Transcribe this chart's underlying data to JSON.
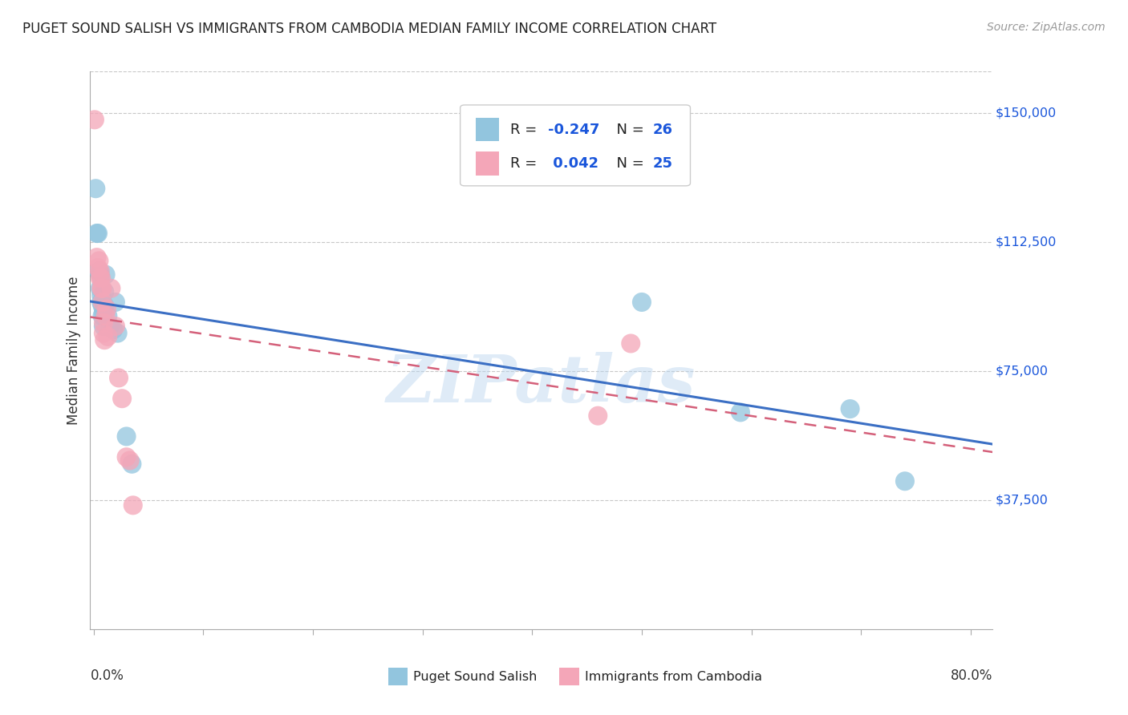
{
  "title": "PUGET SOUND SALISH VS IMMIGRANTS FROM CAMBODIA MEDIAN FAMILY INCOME CORRELATION CHART",
  "source": "Source: ZipAtlas.com",
  "ylabel": "Median Family Income",
  "ytick_labels": [
    "$150,000",
    "$112,500",
    "$75,000",
    "$37,500"
  ],
  "ytick_values": [
    150000,
    112500,
    75000,
    37500
  ],
  "ymin": 0,
  "ymax": 162000,
  "xmin": -0.003,
  "xmax": 0.82,
  "color_blue": "#92c5de",
  "color_pink": "#f4a6b8",
  "color_blue_line": "#3B6FC4",
  "color_pink_line": "#d4607a",
  "color_legend_text": "#1a56db",
  "background": "#ffffff",
  "watermark": "ZIPatlas",
  "blue_points_x": [
    0.002,
    0.003,
    0.004,
    0.005,
    0.006,
    0.006,
    0.007,
    0.007,
    0.008,
    0.008,
    0.009,
    0.009,
    0.01,
    0.01,
    0.011,
    0.013,
    0.015,
    0.018,
    0.02,
    0.022,
    0.03,
    0.035,
    0.5,
    0.59,
    0.69,
    0.74
  ],
  "blue_points_y": [
    128000,
    115000,
    115000,
    104000,
    103000,
    99000,
    97000,
    95000,
    94000,
    91000,
    92000,
    88000,
    98000,
    94000,
    103000,
    91000,
    88000,
    87000,
    95000,
    86000,
    56000,
    48000,
    95000,
    63000,
    64000,
    43000
  ],
  "pink_points_x": [
    0.001,
    0.003,
    0.004,
    0.005,
    0.006,
    0.006,
    0.007,
    0.007,
    0.008,
    0.008,
    0.009,
    0.009,
    0.01,
    0.011,
    0.012,
    0.013,
    0.016,
    0.02,
    0.023,
    0.026,
    0.03,
    0.033,
    0.036,
    0.46,
    0.49
  ],
  "pink_points_y": [
    148000,
    108000,
    105000,
    107000,
    104000,
    102000,
    102000,
    99000,
    99000,
    95000,
    89000,
    86000,
    84000,
    91000,
    93000,
    85000,
    99000,
    88000,
    73000,
    67000,
    50000,
    49000,
    36000,
    62000,
    83000
  ],
  "xtick_positions": [
    0.0,
    0.1,
    0.2,
    0.3,
    0.4,
    0.5,
    0.6,
    0.7,
    0.8
  ]
}
